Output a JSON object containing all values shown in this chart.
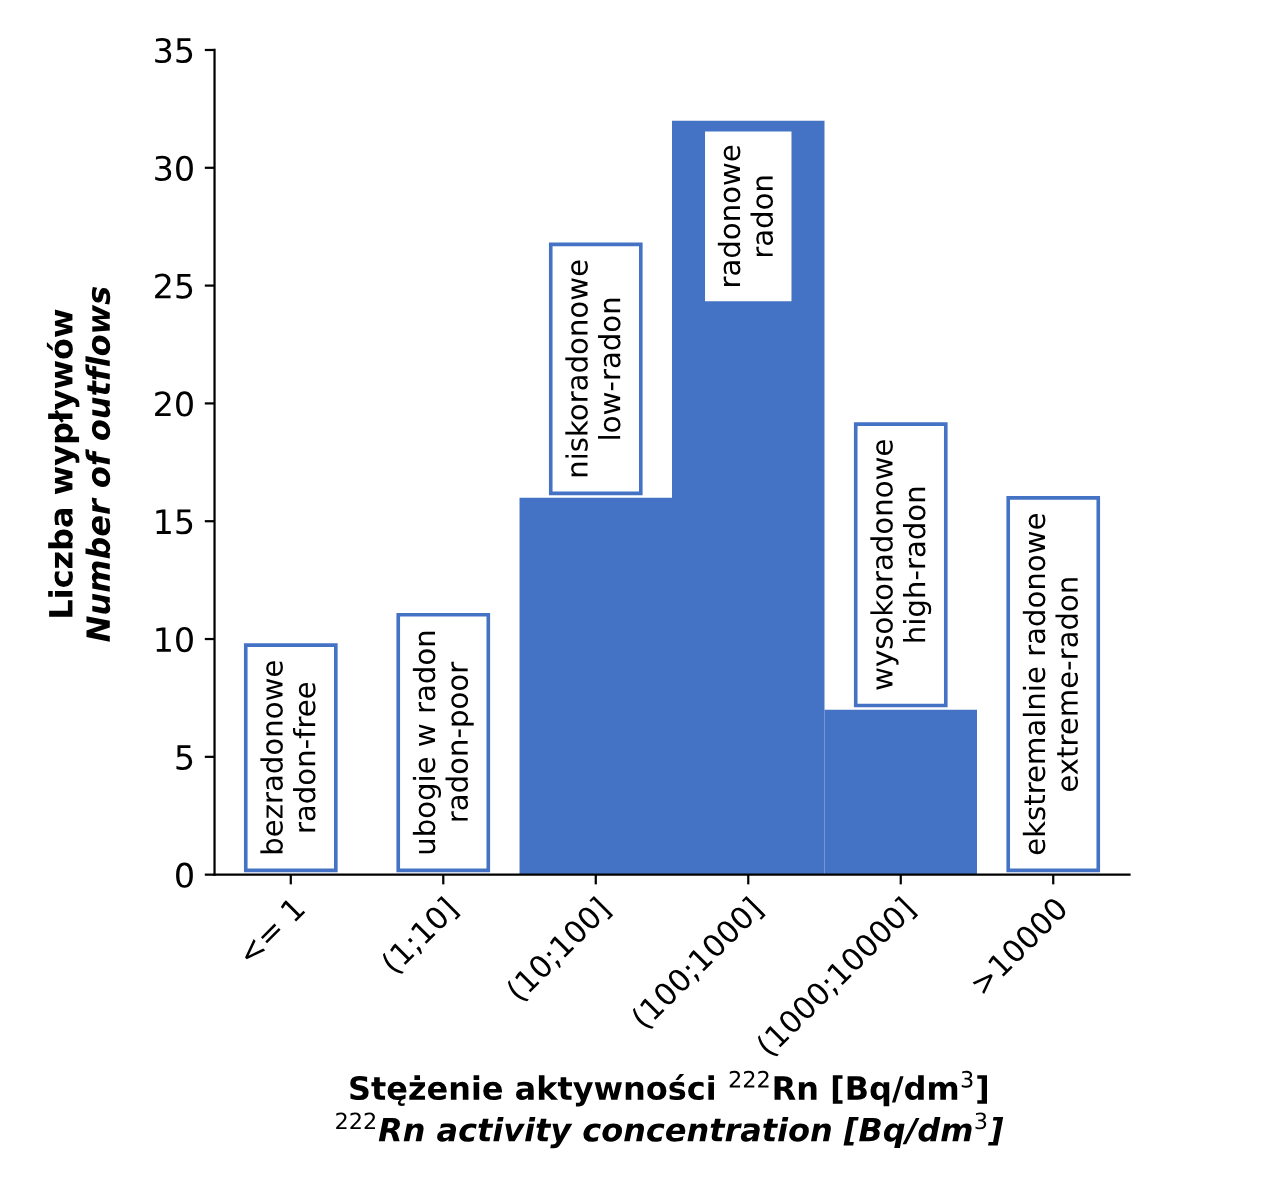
{
  "chart_data": {
    "type": "bar",
    "categories": [
      "<= 1",
      "(1;10]",
      "(10;100]",
      "(100;1000]",
      "(1000;10000]",
      ">10000"
    ],
    "values": [
      0,
      0,
      16,
      32,
      7,
      0
    ],
    "color": "#4472c4",
    "ylim": [
      0,
      35
    ],
    "yticks": [
      0,
      5,
      10,
      15,
      20,
      25,
      30,
      35
    ],
    "xlabel": "Stężenie aktywności $^{222}$Rn [Bq/dm$^{3}$]\n$^{222}$Rn activity concentration [Bq/dm$^{3}$]",
    "ylabel": "Liczba wypływów\nNumber of outflows",
    "annotations": [
      "bezradonowe\nradon-free",
      "ubogie w radon\nradon-poor",
      "niskoradonowe\nlow-radon",
      "radonowe\nradon",
      "wysokoradonowe\nhigh-radon",
      "ekstremalnie radonowe\nextreme-radon"
    ],
    "grid": false
  }
}
